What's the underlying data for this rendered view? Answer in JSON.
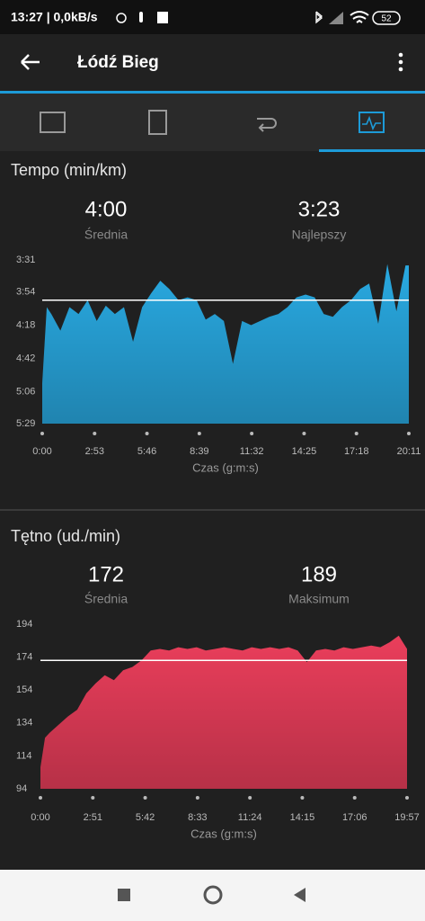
{
  "status_bar": {
    "time": "13:27 | 0,0kB/s",
    "battery": "52"
  },
  "app_bar": {
    "title": "Łódź Bieg"
  },
  "chart_data": [
    {
      "type": "area",
      "title": "Tempo (min/km)",
      "stats": [
        {
          "value": 240,
          "label": "4:00",
          "name": "Średnia"
        },
        {
          "value": 203,
          "label": "3:23",
          "name": "Najlepszy"
        }
      ],
      "x_label": "Czas (g:m:s)",
      "x": [
        0,
        15,
        30,
        60,
        90,
        120,
        150,
        180,
        210,
        240,
        270,
        300,
        330,
        360,
        390,
        420,
        450,
        480,
        510,
        540,
        570,
        600,
        630,
        660,
        690,
        720,
        750,
        780,
        810,
        840,
        870,
        900,
        930,
        960,
        990,
        1020,
        1050,
        1080,
        1110,
        1140,
        1170,
        1200,
        1211
      ],
      "series": [
        {
          "name": "Tempo",
          "color": "#29a9e1",
          "values": [
            300,
            245,
            250,
            262,
            245,
            250,
            240,
            255,
            244,
            250,
            245,
            270,
            245,
            235,
            226,
            232,
            240,
            238,
            240,
            254,
            250,
            255,
            286,
            255,
            258,
            255,
            252,
            250,
            245,
            238,
            236,
            238,
            250,
            252,
            245,
            240,
            232,
            228,
            257,
            214,
            248,
            215,
            215
          ]
        }
      ],
      "xlim": [
        0,
        1211
      ],
      "xticks": [
        {
          "value": 0,
          "label": "0:00"
        },
        {
          "value": 173,
          "label": "2:53"
        },
        {
          "value": 346,
          "label": "5:46"
        },
        {
          "value": 519,
          "label": "8:39"
        },
        {
          "value": 692,
          "label": "11:32"
        },
        {
          "value": 865,
          "label": "14:25"
        },
        {
          "value": 1038,
          "label": "17:18"
        },
        {
          "value": 1211,
          "label": "20:11"
        }
      ],
      "ylim": [
        329,
        211
      ],
      "yticks": [
        {
          "value": 211,
          "label": "3:31"
        },
        {
          "value": 234,
          "label": "3:54"
        },
        {
          "value": 258,
          "label": "4:18"
        },
        {
          "value": 282,
          "label": "4:42"
        },
        {
          "value": 306,
          "label": "5:06"
        },
        {
          "value": 329,
          "label": "5:29"
        }
      ]
    },
    {
      "type": "area",
      "title": "Tętno (ud./min)",
      "stats": [
        {
          "value": 172,
          "name": "Średnia"
        },
        {
          "value": 189,
          "name": "Maksimum"
        }
      ],
      "x_label": "Czas (g:m:s)",
      "x": [
        0,
        15,
        30,
        60,
        90,
        120,
        150,
        180,
        210,
        240,
        270,
        300,
        330,
        360,
        390,
        420,
        450,
        480,
        510,
        540,
        570,
        600,
        630,
        660,
        690,
        720,
        750,
        780,
        810,
        840,
        870,
        900,
        930,
        960,
        990,
        1020,
        1050,
        1080,
        1110,
        1140,
        1170,
        1197
      ],
      "series": [
        {
          "name": "Tętno",
          "color": "#ea3e5b",
          "values": [
            107,
            125,
            128,
            133,
            138,
            142,
            152,
            158,
            163,
            160,
            166,
            168,
            172,
            178,
            179,
            178,
            180,
            179,
            180,
            178,
            179,
            180,
            179,
            178,
            180,
            179,
            180,
            179,
            180,
            178,
            171,
            178,
            179,
            178,
            180,
            179,
            180,
            181,
            180,
            183,
            187,
            179
          ]
        }
      ],
      "xlim": [
        0,
        1197
      ],
      "xticks": [
        {
          "value": 0,
          "label": "0:00"
        },
        {
          "value": 171,
          "label": "2:51"
        },
        {
          "value": 342,
          "label": "5:42"
        },
        {
          "value": 513,
          "label": "8:33"
        },
        {
          "value": 684,
          "label": "11:24"
        },
        {
          "value": 855,
          "label": "14:15"
        },
        {
          "value": 1026,
          "label": "17:06"
        },
        {
          "value": 1197,
          "label": "19:57"
        }
      ],
      "ylim": [
        94,
        194
      ],
      "yticks": [
        94,
        114,
        134,
        154,
        174,
        194
      ]
    }
  ]
}
